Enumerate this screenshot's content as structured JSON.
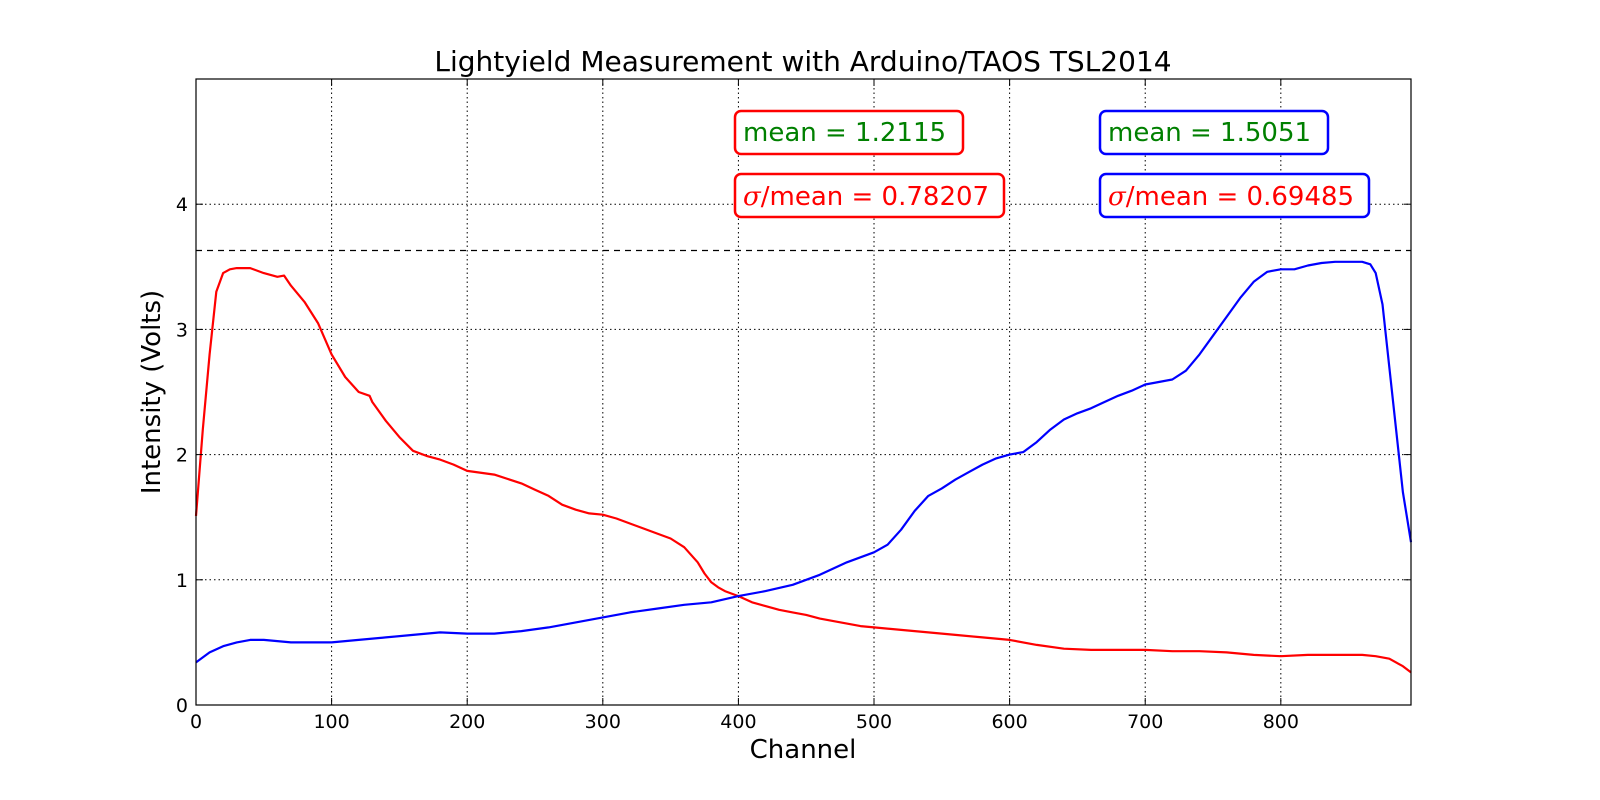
{
  "chart_data": {
    "type": "line",
    "title": "Lightyield Measurement with Arduino/TAOS TSL2014",
    "xlabel": "Channel",
    "ylabel": "Intensity (Volts)",
    "xlim": [
      0,
      896
    ],
    "ylim": [
      0,
      5
    ],
    "xticks": [
      0,
      100,
      200,
      300,
      400,
      500,
      600,
      700,
      800
    ],
    "yticks": [
      0,
      1,
      2,
      3,
      4
    ],
    "grid": true,
    "reference_line": {
      "y": 3.63,
      "style": "dashed",
      "color": "#000000"
    },
    "series": [
      {
        "color": "#ff0000",
        "x": [
          0,
          5,
          10,
          15,
          20,
          25,
          30,
          40,
          50,
          60,
          65,
          70,
          80,
          90,
          100,
          110,
          120,
          128,
          130,
          140,
          150,
          160,
          170,
          180,
          190,
          200,
          220,
          240,
          250,
          260,
          270,
          280,
          290,
          300,
          310,
          320,
          330,
          340,
          350,
          360,
          370,
          375,
          380,
          385,
          390,
          400,
          410,
          420,
          430,
          440,
          450,
          460,
          470,
          480,
          490,
          500,
          520,
          540,
          560,
          580,
          600,
          620,
          640,
          660,
          680,
          700,
          720,
          740,
          760,
          780,
          800,
          820,
          840,
          860,
          870,
          880,
          890,
          896
        ],
        "values": [
          1.51,
          2.2,
          2.8,
          3.3,
          3.45,
          3.48,
          3.49,
          3.49,
          3.45,
          3.42,
          3.43,
          3.35,
          3.22,
          3.05,
          2.8,
          2.62,
          2.5,
          2.47,
          2.42,
          2.27,
          2.14,
          2.03,
          1.99,
          1.96,
          1.92,
          1.87,
          1.84,
          1.77,
          1.72,
          1.67,
          1.6,
          1.56,
          1.53,
          1.52,
          1.49,
          1.45,
          1.41,
          1.37,
          1.33,
          1.26,
          1.14,
          1.05,
          0.98,
          0.94,
          0.91,
          0.87,
          0.82,
          0.79,
          0.76,
          0.74,
          0.72,
          0.69,
          0.67,
          0.65,
          0.63,
          0.62,
          0.6,
          0.58,
          0.56,
          0.54,
          0.52,
          0.48,
          0.45,
          0.44,
          0.44,
          0.44,
          0.43,
          0.43,
          0.42,
          0.4,
          0.39,
          0.4,
          0.4,
          0.4,
          0.39,
          0.37,
          0.31,
          0.26
        ]
      },
      {
        "color": "#0000ff",
        "x": [
          0,
          10,
          20,
          30,
          40,
          50,
          60,
          70,
          80,
          100,
          120,
          140,
          160,
          180,
          200,
          220,
          240,
          260,
          280,
          300,
          320,
          340,
          360,
          380,
          400,
          420,
          440,
          460,
          480,
          500,
          510,
          520,
          530,
          540,
          550,
          560,
          570,
          580,
          590,
          600,
          610,
          620,
          630,
          640,
          650,
          660,
          670,
          680,
          690,
          700,
          710,
          720,
          730,
          740,
          750,
          760,
          770,
          780,
          790,
          800,
          810,
          820,
          830,
          840,
          850,
          860,
          866,
          870,
          875,
          880,
          885,
          890,
          896
        ],
        "values": [
          0.34,
          0.42,
          0.47,
          0.5,
          0.52,
          0.52,
          0.51,
          0.5,
          0.5,
          0.5,
          0.52,
          0.54,
          0.56,
          0.58,
          0.57,
          0.57,
          0.59,
          0.62,
          0.66,
          0.7,
          0.74,
          0.77,
          0.8,
          0.82,
          0.87,
          0.91,
          0.96,
          1.04,
          1.14,
          1.22,
          1.28,
          1.4,
          1.55,
          1.67,
          1.73,
          1.8,
          1.86,
          1.92,
          1.97,
          2.0,
          2.02,
          2.1,
          2.2,
          2.28,
          2.33,
          2.37,
          2.42,
          2.47,
          2.51,
          2.56,
          2.58,
          2.6,
          2.67,
          2.8,
          2.95,
          3.1,
          3.25,
          3.38,
          3.46,
          3.48,
          3.48,
          3.51,
          3.53,
          3.54,
          3.54,
          3.54,
          3.52,
          3.45,
          3.2,
          2.7,
          2.2,
          1.7,
          1.3
        ]
      }
    ],
    "annotations": {
      "red": {
        "mean": "mean = 1.2115",
        "cv_symbol": "σ",
        "cv": "/mean = 0.78207",
        "box_color": "#ff0000"
      },
      "blue": {
        "mean": "mean = 1.5051",
        "cv_symbol": "σ",
        "cv": "/mean = 0.69485",
        "box_color": "#0000ff"
      }
    },
    "mean_text_color": "#008000",
    "cv_text_color": "#ff0000"
  }
}
